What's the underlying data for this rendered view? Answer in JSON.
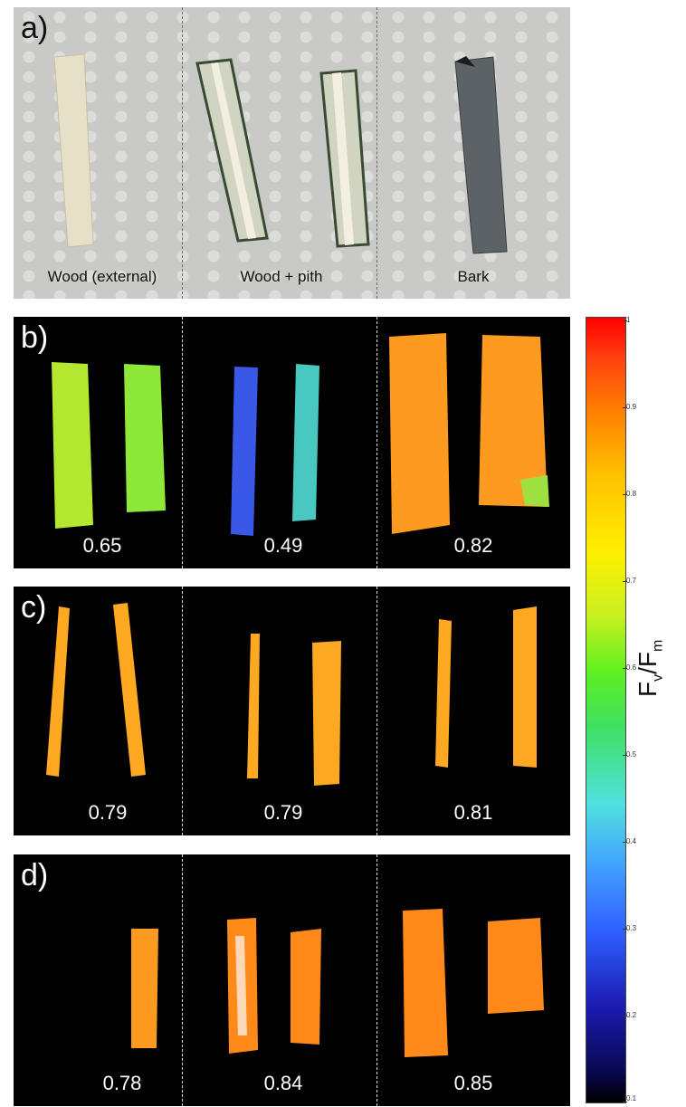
{
  "panel_a": {
    "label": "a)",
    "captions": [
      "Wood (external)",
      "Wood + pith",
      "Bark"
    ]
  },
  "panel_b": {
    "label": "b)",
    "values": [
      "0.65",
      "0.49",
      "0.82"
    ]
  },
  "panel_c": {
    "label": "c)",
    "values": [
      "0.79",
      "0.79",
      "0.81"
    ]
  },
  "panel_d": {
    "label": "d)",
    "values": [
      "0.78",
      "0.84",
      "0.85"
    ]
  },
  "colorbar": {
    "label_main": "F",
    "label_sub1": "v",
    "label_slash": "/F",
    "label_sub2": "m",
    "ticks": [
      "1",
      "0.9",
      "0.8",
      "0.7",
      "0.6",
      "0.5",
      "0.4",
      "0.3",
      "0.2",
      "0.1"
    ],
    "colors": {
      "low": "#000000",
      "mid": "#40e060",
      "high": "#ff0000"
    }
  }
}
